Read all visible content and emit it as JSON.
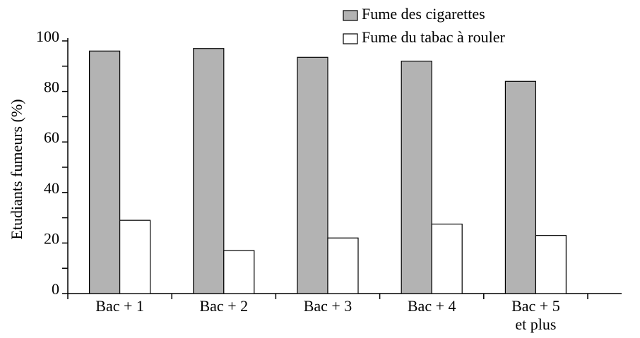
{
  "chart_data": {
    "type": "bar",
    "y_label": "Etudiants fumeurs (%)",
    "categories": [
      [
        "Bac + 1"
      ],
      [
        "Bac + 2"
      ],
      [
        "Bac + 3"
      ],
      [
        "Bac + 4"
      ],
      [
        "Bac + 5",
        "et plus"
      ]
    ],
    "series": [
      {
        "name": "Fume des cigarettes",
        "color": "#b3b3b3",
        "values": [
          96,
          97,
          93.5,
          92,
          84
        ]
      },
      {
        "name": "Fume du tabac à rouler",
        "color": "#ffffff",
        "values": [
          29,
          17,
          22,
          27.5,
          23
        ]
      }
    ],
    "ylim": [
      0,
      100
    ],
    "yticks": [
      0,
      20,
      40,
      60,
      80,
      100
    ],
    "minor_yticks": [
      10,
      30,
      50,
      70,
      90
    ],
    "legend": "top-right"
  }
}
